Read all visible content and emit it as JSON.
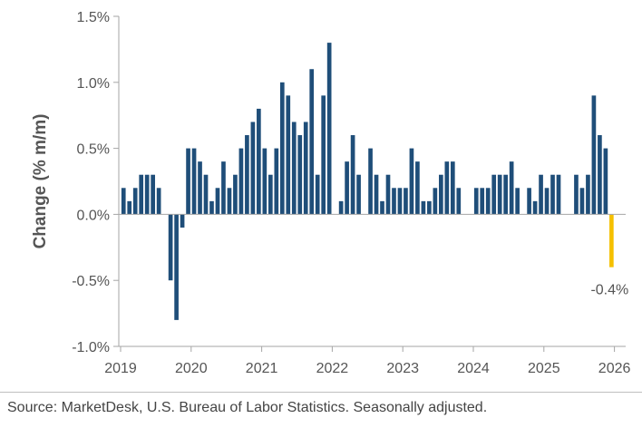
{
  "chart_data": {
    "type": "bar",
    "ylabel": "Change (% m/m)",
    "ylim": [
      -1.0,
      1.5
    ],
    "y_ticks": [
      "1.5%",
      "1.0%",
      "0.5%",
      "0.0%",
      "-0.5%",
      "-1.0%"
    ],
    "x_ticks": [
      "2019",
      "2020",
      "2021",
      "2022",
      "2023",
      "2024",
      "2025",
      "2026"
    ],
    "start": "2019-01",
    "values": [
      0.2,
      0.1,
      0.2,
      0.3,
      0.3,
      0.3,
      0.2,
      0.0,
      -0.5,
      -0.8,
      -0.1,
      0.5,
      0.5,
      0.4,
      0.3,
      0.1,
      0.2,
      0.4,
      0.2,
      0.3,
      0.5,
      0.6,
      0.7,
      0.8,
      0.5,
      0.3,
      0.5,
      1.0,
      0.9,
      0.7,
      0.6,
      0.7,
      1.1,
      0.3,
      0.9,
      1.3,
      0.0,
      0.1,
      0.4,
      0.6,
      0.3,
      0.0,
      0.5,
      0.3,
      0.1,
      0.3,
      0.2,
      0.2,
      0.2,
      0.5,
      0.4,
      0.1,
      0.1,
      0.2,
      0.3,
      0.4,
      0.4,
      0.2,
      0.0,
      0.0,
      0.2,
      0.2,
      0.2,
      0.3,
      0.3,
      0.3,
      0.4,
      0.2,
      0.0,
      0.2,
      0.1,
      0.3,
      0.2,
      0.3,
      0.3,
      0.0,
      0.0,
      0.3,
      0.2,
      0.3,
      0.9,
      0.6,
      0.5,
      -0.4
    ],
    "bar_color": "#1f4e79",
    "highlight_color": "#f5c000",
    "highlight_label": "-0.4%",
    "grid": false,
    "legend": "none"
  },
  "footer": {
    "source": "Source: MarketDesk, U.S. Bureau of Labor Statistics. Seasonally adjusted."
  }
}
